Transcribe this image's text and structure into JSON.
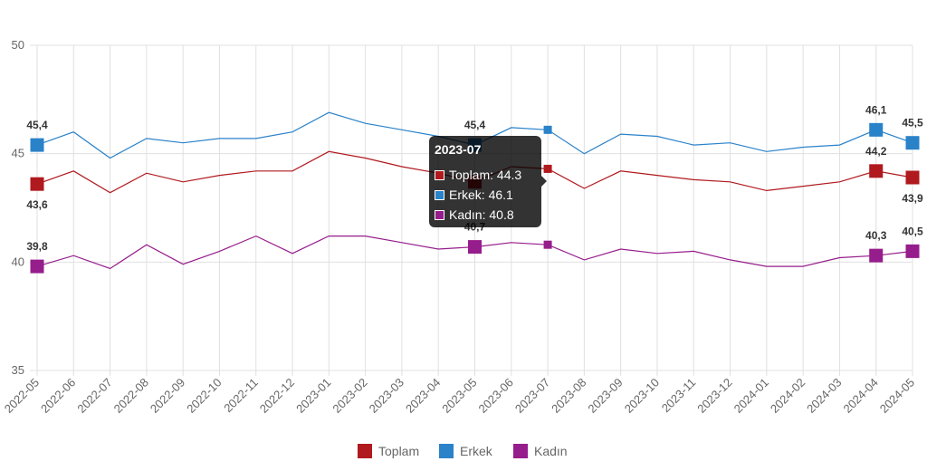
{
  "chart_data": {
    "type": "line",
    "categories": [
      "2022-05",
      "2022-06",
      "2022-07",
      "2022-08",
      "2022-09",
      "2022-10",
      "2022-11",
      "2022-12",
      "2023-01",
      "2023-02",
      "2023-03",
      "2023-04",
      "2023-05",
      "2023-06",
      "2023-07",
      "2023-08",
      "2023-09",
      "2023-10",
      "2023-11",
      "2023-12",
      "2024-01",
      "2024-02",
      "2024-03",
      "2024-04",
      "2024-05"
    ],
    "ylim": [
      35,
      50
    ],
    "yticks": [
      "35",
      "40",
      "45",
      "50"
    ],
    "series": [
      {
        "name": "Toplam",
        "color": "#b0191e",
        "values": [
          43.6,
          44.2,
          43.2,
          44.1,
          43.7,
          44.0,
          44.2,
          44.2,
          45.1,
          44.8,
          44.4,
          44.1,
          43.7,
          44.4,
          44.3,
          43.4,
          44.2,
          44.0,
          43.8,
          43.7,
          43.3,
          43.5,
          43.7,
          44.2,
          43.9
        ],
        "labels": [
          {
            "index": 0,
            "text": "43,6",
            "pos": "below"
          },
          {
            "index": 23,
            "text": "44,2",
            "pos": "above"
          },
          {
            "index": 24,
            "text": "43,9",
            "pos": "below"
          }
        ]
      },
      {
        "name": "Erkek",
        "color": "#2a82c9",
        "values": [
          45.4,
          46.0,
          44.8,
          45.7,
          45.5,
          45.7,
          45.7,
          46.0,
          46.9,
          46.4,
          46.1,
          45.8,
          45.4,
          46.2,
          46.1,
          45.0,
          45.9,
          45.8,
          45.4,
          45.5,
          45.1,
          45.3,
          45.4,
          46.1,
          45.5
        ],
        "labels": [
          {
            "index": 0,
            "text": "45,4",
            "pos": "above"
          },
          {
            "index": 12,
            "text": "45,4",
            "pos": "above"
          },
          {
            "index": 23,
            "text": "46,1",
            "pos": "above"
          },
          {
            "index": 24,
            "text": "45,5",
            "pos": "above"
          }
        ]
      },
      {
        "name": "Kadın",
        "color": "#961d8c",
        "values": [
          39.8,
          40.3,
          39.7,
          40.8,
          39.9,
          40.5,
          41.2,
          40.4,
          41.2,
          41.2,
          40.9,
          40.6,
          40.7,
          40.9,
          40.8,
          40.1,
          40.6,
          40.4,
          40.5,
          40.1,
          39.8,
          39.8,
          40.2,
          40.3,
          40.5
        ],
        "labels": [
          {
            "index": 0,
            "text": "39,8",
            "pos": "above"
          },
          {
            "index": 12,
            "text": "40,7",
            "pos": "above"
          },
          {
            "index": 23,
            "text": "40,3",
            "pos": "above"
          },
          {
            "index": 24,
            "text": "40,5",
            "pos": "above"
          }
        ]
      }
    ],
    "highlight_index": 12,
    "hover_index": 14,
    "tooltip": {
      "title": "2023-07",
      "rows": [
        "Toplam: 44.3",
        "Erkek: 46.1",
        "Kadın: 40.8"
      ]
    },
    "legend_position": "bottom"
  }
}
